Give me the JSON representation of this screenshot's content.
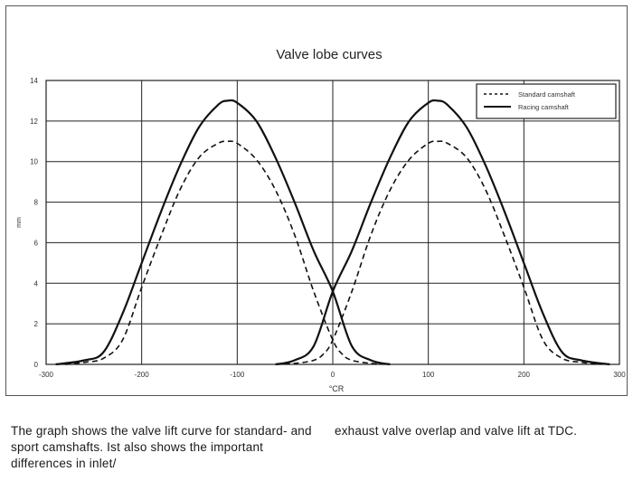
{
  "chart_data": {
    "type": "line",
    "title": "Valve lobe curves",
    "xlabel": "°CR",
    "ylabel": "mm",
    "xlim": [
      -300,
      300
    ],
    "ylim": [
      0,
      14
    ],
    "xticks": [
      -300,
      -200,
      -100,
      0,
      100,
      200,
      300
    ],
    "yticks": [
      0,
      2,
      4,
      6,
      8,
      10,
      12,
      14
    ],
    "grid": true,
    "legend": "top-right",
    "series": [
      {
        "name": "Standard camshaft",
        "style": "dashed",
        "x": [
          -280,
          -260,
          -240,
          -220,
          -200,
          -180,
          -160,
          -140,
          -120,
          -110,
          -100,
          -80,
          -60,
          -40,
          -20,
          0,
          10,
          20,
          40,
          60
        ],
        "y": [
          0,
          0.1,
          0.3,
          1.2,
          3.8,
          6.3,
          8.6,
          10.2,
          10.9,
          11.0,
          10.9,
          10.1,
          8.6,
          6.4,
          3.6,
          1.2,
          0.5,
          0.2,
          0.05,
          0
        ]
      },
      {
        "name": "Racing camshaft",
        "style": "solid",
        "x": [
          -290,
          -260,
          -240,
          -220,
          -200,
          -180,
          -160,
          -140,
          -120,
          -110,
          -100,
          -80,
          -60,
          -40,
          -20,
          0,
          20,
          40,
          60
        ],
        "y": [
          0,
          0.2,
          0.6,
          2.5,
          5.0,
          7.5,
          9.8,
          11.7,
          12.8,
          13.0,
          12.9,
          12.0,
          10.2,
          8.0,
          5.6,
          3.6,
          0.9,
          0.2,
          0
        ]
      },
      {
        "name": "Standard camshaft",
        "style": "dashed",
        "x": [
          -60,
          -40,
          -20,
          -10,
          0,
          20,
          40,
          60,
          80,
          100,
          110,
          120,
          140,
          160,
          180,
          200,
          220,
          240,
          260,
          280
        ],
        "y": [
          0,
          0.05,
          0.2,
          0.5,
          1.2,
          3.6,
          6.4,
          8.6,
          10.1,
          10.9,
          11.0,
          10.9,
          10.2,
          8.6,
          6.3,
          3.8,
          1.2,
          0.3,
          0.1,
          0
        ]
      },
      {
        "name": "Racing camshaft",
        "style": "solid",
        "x": [
          -60,
          -40,
          -20,
          0,
          20,
          40,
          60,
          80,
          100,
          110,
          120,
          140,
          160,
          180,
          200,
          220,
          240,
          260,
          290
        ],
        "y": [
          0,
          0.2,
          0.9,
          3.6,
          5.6,
          8.0,
          10.2,
          12.0,
          12.9,
          13.0,
          12.8,
          11.7,
          9.8,
          7.5,
          5.0,
          2.5,
          0.6,
          0.2,
          0
        ]
      }
    ]
  },
  "caption": {
    "left": "The graph shows the valve lift curve for standard- and sport camshafts. Ist also shows the important differences in inlet/",
    "right": "exhaust valve overlap and valve lift at TDC."
  },
  "colors": {
    "line": "#111111",
    "grid": "#222222",
    "frame": "#555555"
  }
}
